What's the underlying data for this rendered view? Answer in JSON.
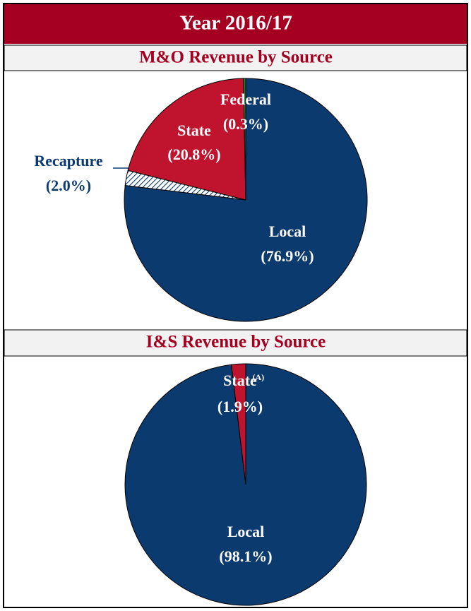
{
  "header": {
    "title": "Year 2016/17"
  },
  "chart_data": [
    {
      "type": "pie",
      "title": "M&O Revenue by Source",
      "categories": [
        "Local",
        "Recapture",
        "State",
        "Federal"
      ],
      "values": [
        76.9,
        2.0,
        20.8,
        0.3
      ],
      "value_labels": [
        "(76.9%)",
        "(2.0%)",
        "(20.8%)",
        "(0.3%)"
      ],
      "colors": [
        "#0b3a6f",
        "hatch",
        "#c0142e",
        "#2e7d32"
      ]
    },
    {
      "type": "pie",
      "title": "I&S Revenue by Source",
      "categories": [
        "Local",
        "State"
      ],
      "values": [
        98.1,
        1.9
      ],
      "value_labels": [
        "(98.1%)",
        "(1.9%)"
      ],
      "colors": [
        "#0b3a6f",
        "#c0142e"
      ],
      "note_marker": "(A)"
    }
  ]
}
